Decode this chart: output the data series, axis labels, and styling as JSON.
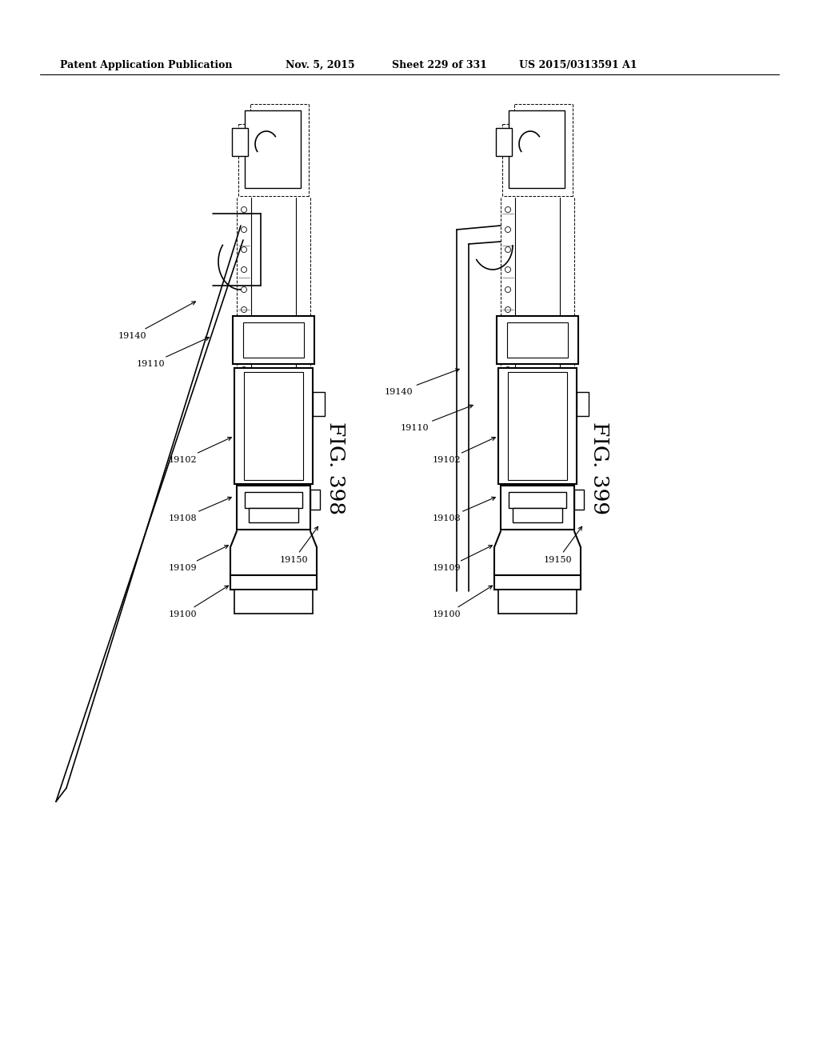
{
  "background_color": "#ffffff",
  "header_text": "Patent Application Publication",
  "header_date": "Nov. 5, 2015",
  "header_sheet": "Sheet 229 of 331",
  "header_patent": "US 2015/0313591 A1",
  "fig_label_398": "FIG. 398",
  "fig_label_399": "FIG. 399",
  "refs_398": [
    "19140",
    "19110",
    "19102",
    "19108",
    "19109",
    "19100",
    "19150"
  ],
  "refs_399": [
    "19140",
    "19110",
    "19102",
    "19108",
    "19109",
    "19100",
    "19150"
  ]
}
